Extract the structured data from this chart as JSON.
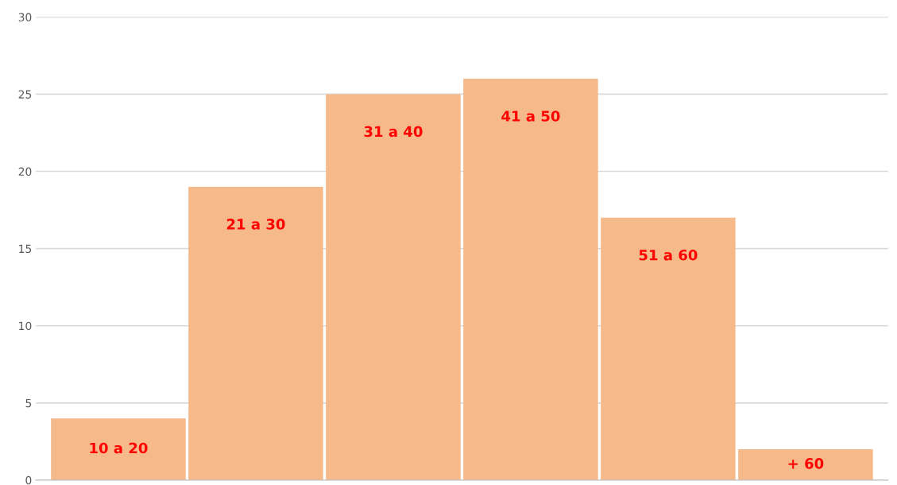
{
  "chart_data": {
    "type": "bar",
    "categories": [
      "10 a 20",
      "21 a 30",
      "31 a 40",
      "41 a 50",
      "51 a 60",
      "+ 60"
    ],
    "values": [
      4,
      19,
      25,
      26,
      17,
      2
    ],
    "color": "#f6b98a",
    "ylim": [
      0,
      30
    ],
    "yticks": [
      0,
      5,
      10,
      15,
      20,
      25,
      30
    ],
    "grid": "y",
    "tick_labels": "y"
  }
}
